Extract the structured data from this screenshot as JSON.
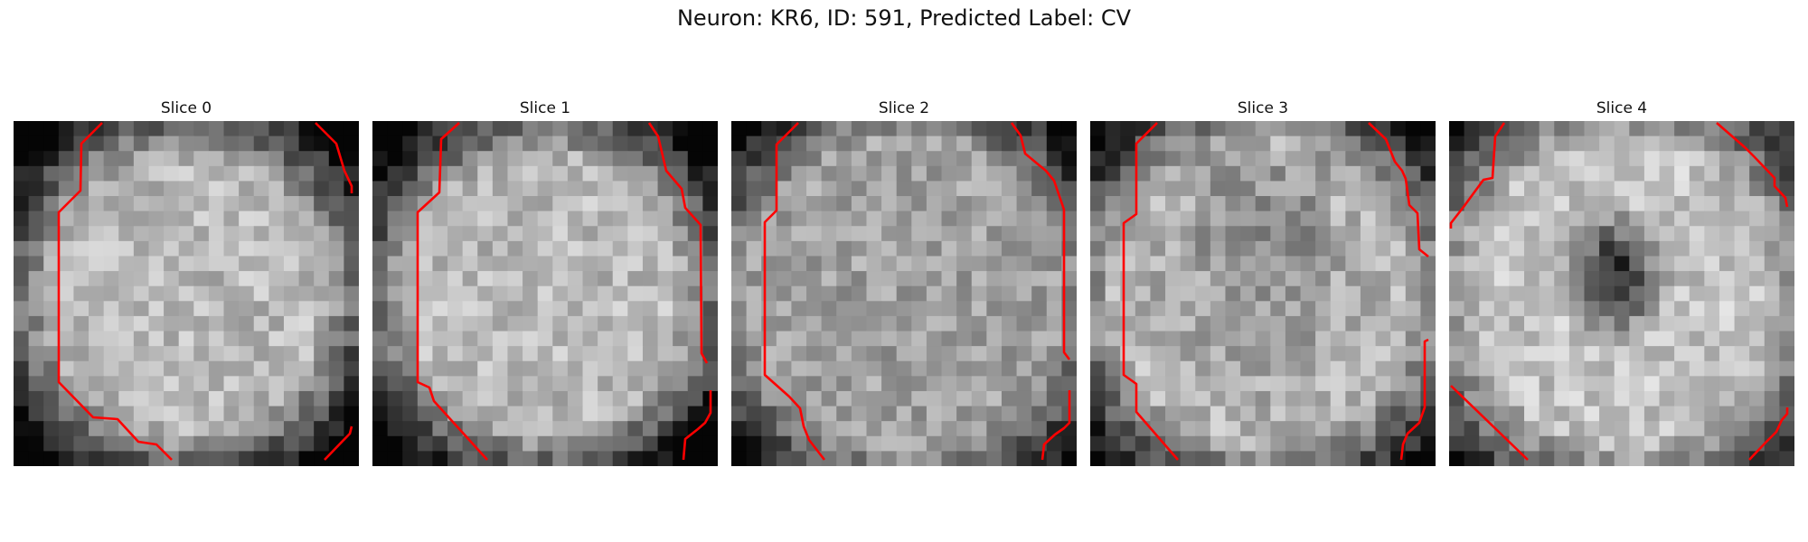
{
  "figure": {
    "title": "Neuron: KR6, ID: 591, Predicted Label: CV"
  },
  "panels": [
    {
      "title": "Slice 0",
      "pattern": "bright-disk"
    },
    {
      "title": "Slice 1",
      "pattern": "bright-disk"
    },
    {
      "title": "Slice 2",
      "pattern": "flat-noise"
    },
    {
      "title": "Slice 3",
      "pattern": "dim-center"
    },
    {
      "title": "Slice 4",
      "pattern": "dark-nucleus"
    }
  ],
  "colors": {
    "contour": "#ff0000",
    "background": "#ffffff"
  }
}
